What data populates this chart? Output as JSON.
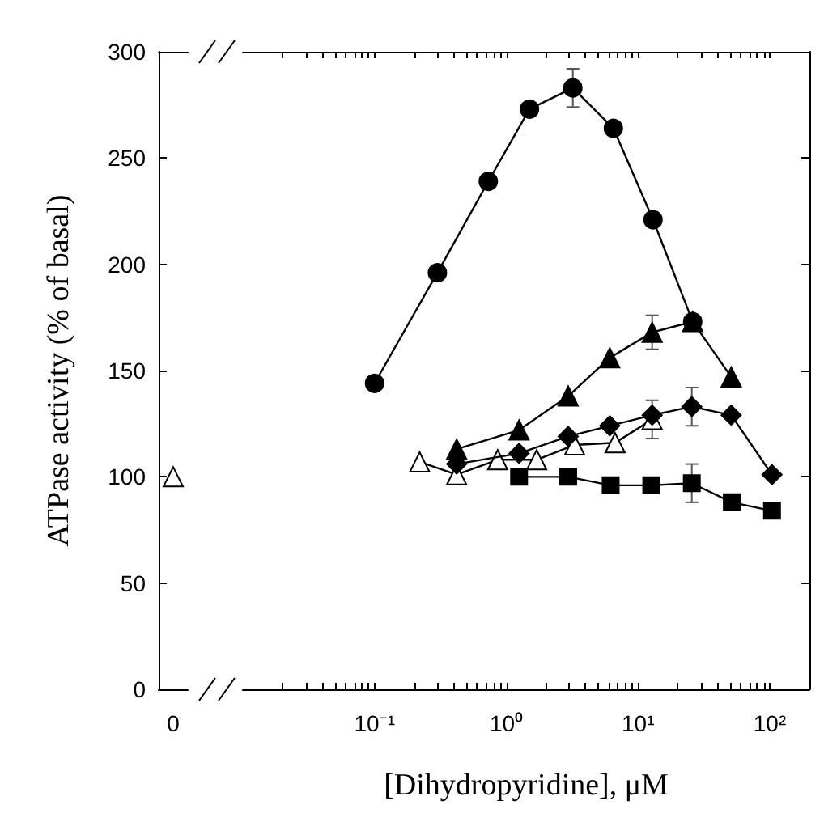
{
  "chart_data": [
    {
      "type": "line",
      "categories": [
        "0"
      ],
      "ylabel": "ATPase activity (% of basal)",
      "ylim": [
        0,
        300
      ],
      "yticks": [
        0,
        50,
        100,
        150,
        200,
        250,
        300
      ],
      "grid": false,
      "series": [
        {
          "color": "#ffffff",
          "marker": "triangle",
          "values": [
            100
          ]
        }
      ]
    },
    {
      "type": "line",
      "xlabel": "[Dihydropyridine], μM",
      "log": "x",
      "xlim": [
        0.01,
        200
      ],
      "xticks": [
        {
          "value": 0.02,
          "label": null
        },
        {
          "value": 0.03,
          "label": null
        },
        {
          "value": 0.04,
          "label": null
        },
        {
          "value": 0.05,
          "label": null
        },
        {
          "value": 0.06,
          "label": null
        },
        {
          "value": 0.07,
          "label": null
        },
        {
          "value": 0.08,
          "label": null
        },
        {
          "value": 0.09,
          "label": null
        },
        {
          "value": 0.1,
          "label": "10⁻¹"
        },
        {
          "value": 0.2,
          "label": null
        },
        {
          "value": 0.3,
          "label": null
        },
        {
          "value": 0.4,
          "label": null
        },
        {
          "value": 0.5,
          "label": null
        },
        {
          "value": 0.6,
          "label": null
        },
        {
          "value": 0.7,
          "label": null
        },
        {
          "value": 0.8,
          "label": null
        },
        {
          "value": 0.9,
          "label": null
        },
        {
          "value": 1,
          "label": "10⁰"
        },
        {
          "value": 2,
          "label": null
        },
        {
          "value": 3,
          "label": null
        },
        {
          "value": 4,
          "label": null
        },
        {
          "value": 5,
          "label": null
        },
        {
          "value": 6,
          "label": null
        },
        {
          "value": 7,
          "label": null
        },
        {
          "value": 8,
          "label": null
        },
        {
          "value": 9,
          "label": null
        },
        {
          "value": 10,
          "label": "10¹"
        },
        {
          "value": 20,
          "label": null
        },
        {
          "value": 30,
          "label": null
        },
        {
          "value": 40,
          "label": null
        },
        {
          "value": 50,
          "label": null
        },
        {
          "value": 60,
          "label": null
        },
        {
          "value": 70,
          "label": null
        },
        {
          "value": 80,
          "label": null
        },
        {
          "value": 90,
          "label": null
        },
        {
          "value": 100,
          "label": "10²"
        },
        {
          "value": 200,
          "label": null
        }
      ],
      "ylim": [
        0,
        300
      ],
      "yticks": [
        {
          "value": 0,
          "label": null
        },
        {
          "value": 50,
          "label": null
        },
        {
          "value": 100,
          "label": null
        },
        {
          "value": 150,
          "label": null
        },
        {
          "value": 200,
          "label": null
        },
        {
          "value": 250,
          "label": null
        },
        {
          "value": 300,
          "label": null
        }
      ],
      "tick_labels": "x",
      "grid": false,
      "line_style": "solid",
      "series": [
        {
          "color": "#000000",
          "marker": "circle",
          "x": [
            0.1,
            0.3,
            0.73,
            1.5,
            3.2,
            6.5,
            13,
            26
          ],
          "values": [
            144,
            196,
            239,
            273,
            283,
            264,
            221,
            173
          ],
          "errors": [
            null,
            null,
            null,
            null,
            9,
            null,
            null,
            null
          ]
        },
        {
          "color": "#000000",
          "marker": "triangle",
          "x": [
            0.42,
            1.25,
            2.95,
            6.1,
            12.8,
            26,
            51
          ],
          "values": [
            113,
            122,
            138,
            156,
            168,
            173,
            147
          ],
          "errors": [
            null,
            null,
            null,
            null,
            8,
            null,
            null
          ]
        },
        {
          "color": "#000000",
          "marker": "diamond",
          "x": [
            0.42,
            1.25,
            2.95,
            6.1,
            12.8,
            25.6,
            51,
            104
          ],
          "values": [
            106,
            111,
            119,
            124,
            129,
            133,
            129,
            101
          ],
          "errors": [
            null,
            null,
            null,
            null,
            null,
            9,
            null,
            null
          ]
        },
        {
          "color": "#000000",
          "marker": "square",
          "x": [
            1.25,
            2.95,
            6.2,
            12.6,
            25.6,
            51.5,
            104
          ],
          "values": [
            100,
            100,
            96,
            96,
            97,
            88,
            84
          ],
          "errors": [
            null,
            null,
            null,
            null,
            9,
            null,
            null
          ]
        },
        {
          "color": "#ffffff",
          "marker": "triangle",
          "x": [
            0.22,
            0.42,
            0.86,
            1.7,
            3.3,
            6.7,
            12.8
          ],
          "values": [
            107,
            101,
            108,
            108,
            115,
            116,
            127
          ],
          "errors": [
            null,
            null,
            null,
            null,
            null,
            null,
            9
          ]
        }
      ]
    }
  ]
}
